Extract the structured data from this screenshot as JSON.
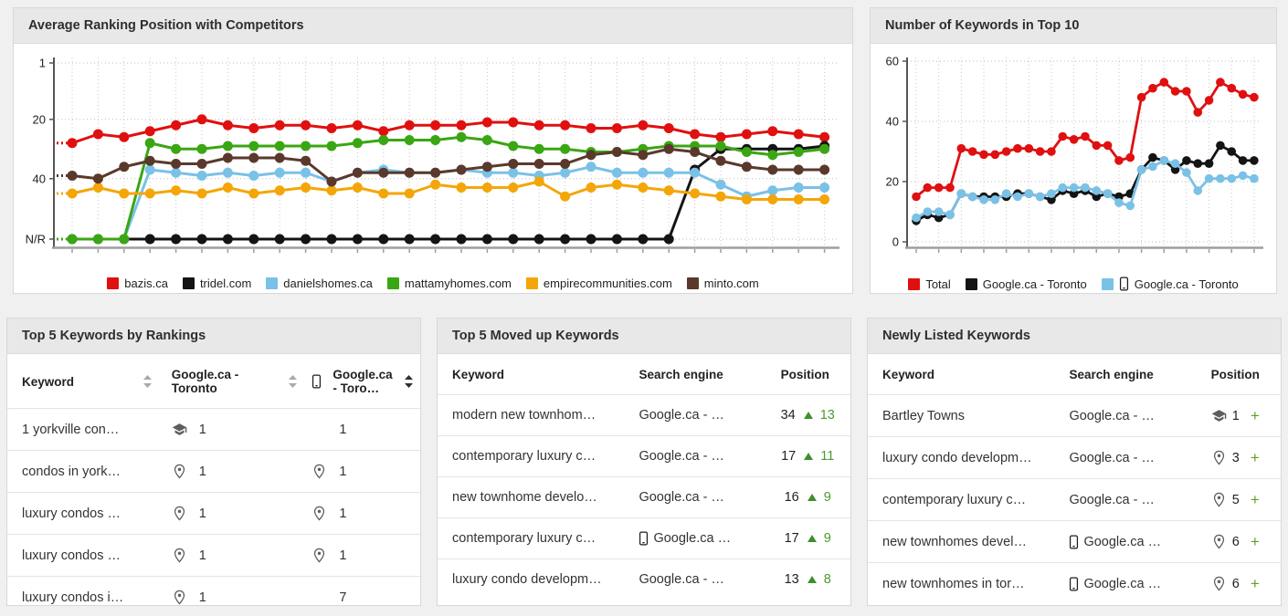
{
  "colors": {
    "red": "#e01010",
    "black": "#141414",
    "light_blue": "#7ac1e7",
    "green": "#3aa613",
    "orange": "#f4a609",
    "brown": "#5a392c",
    "change_green": "#4a9b28",
    "icon_grey": "#5d5d5d"
  },
  "chart_data": [
    {
      "type": "line",
      "title": "Average Ranking Position with Competitors",
      "x_count": 30,
      "y_ticks": [
        "1",
        "20",
        "40",
        "N/R"
      ],
      "y_inverted": true,
      "grid": true,
      "legend_position": "bottom",
      "series": [
        {
          "name": "bazis.ca",
          "color": "#e01010",
          "mobile": false,
          "values": [
            28,
            25,
            26,
            24,
            22,
            20,
            22,
            23,
            22,
            22,
            23,
            22,
            24,
            22,
            22,
            22,
            21,
            21,
            22,
            22,
            23,
            23,
            22,
            23,
            25,
            26,
            25,
            24,
            25,
            26
          ]
        },
        {
          "name": "tridel.com",
          "color": "#141414",
          "mobile": false,
          "values": [
            null,
            null,
            null,
            null,
            null,
            null,
            null,
            null,
            null,
            null,
            null,
            null,
            null,
            null,
            null,
            null,
            null,
            null,
            null,
            null,
            null,
            null,
            null,
            null,
            37,
            30,
            30,
            30,
            30,
            29
          ]
        },
        {
          "name": "danielshomes.ca",
          "color": "#7ac1e7",
          "mobile": false,
          "values": [
            null,
            null,
            null,
            37,
            38,
            39,
            38,
            39,
            38,
            38,
            41,
            38,
            37,
            38,
            38,
            37,
            38,
            38,
            39,
            38,
            36,
            38,
            38,
            38,
            38,
            42,
            46,
            44,
            43,
            43
          ]
        },
        {
          "name": "mattamyhomes.com",
          "color": "#3aa613",
          "mobile": false,
          "values": [
            null,
            null,
            null,
            28,
            30,
            30,
            29,
            29,
            29,
            29,
            29,
            28,
            27,
            27,
            27,
            26,
            27,
            29,
            30,
            30,
            31,
            31,
            30,
            29,
            29,
            29,
            31,
            32,
            31,
            30
          ]
        },
        {
          "name": "empirecommunities.com",
          "color": "#f4a609",
          "mobile": false,
          "values": [
            45,
            43,
            45,
            45,
            44,
            45,
            43,
            45,
            44,
            43,
            44,
            43,
            45,
            45,
            42,
            43,
            43,
            43,
            41,
            46,
            43,
            42,
            43,
            44,
            45,
            46,
            47,
            47,
            47,
            47
          ]
        },
        {
          "name": "minto.com",
          "color": "#5a392c",
          "mobile": false,
          "values": [
            39,
            40,
            36,
            34,
            35,
            35,
            33,
            33,
            33,
            34,
            41,
            38,
            38,
            38,
            38,
            37,
            36,
            35,
            35,
            35,
            32,
            31,
            32,
            30,
            31,
            34,
            36,
            37,
            37,
            37
          ]
        }
      ]
    },
    {
      "type": "line",
      "title": "Number of Keywords in Top 10",
      "x_count": 31,
      "y_ticks": [
        "0",
        "20",
        "40",
        "60"
      ],
      "y_inverted": false,
      "grid": true,
      "legend_position": "bottom",
      "series": [
        {
          "name": "Total",
          "color": "#e01010",
          "mobile": false,
          "values": [
            15,
            18,
            18,
            18,
            31,
            30,
            29,
            29,
            30,
            31,
            31,
            30,
            30,
            35,
            34,
            35,
            32,
            32,
            27,
            28,
            48,
            51,
            53,
            50,
            50,
            43,
            47,
            53,
            51,
            49,
            48
          ]
        },
        {
          "name": "Google.ca - Toronto",
          "color": "#141414",
          "mobile": false,
          "values": [
            7,
            9,
            8,
            9,
            16,
            15,
            15,
            15,
            15,
            16,
            16,
            15,
            14,
            17,
            16,
            17,
            15,
            16,
            15,
            16,
            24,
            28,
            27,
            24,
            27,
            26,
            26,
            32,
            30,
            27,
            27
          ]
        },
        {
          "name": "Google.ca - Toronto",
          "color": "#7ac1e7",
          "mobile": true,
          "values": [
            8,
            10,
            10,
            9,
            16,
            15,
            14,
            14,
            16,
            15,
            16,
            15,
            16,
            18,
            18,
            18,
            17,
            16,
            13,
            12,
            24,
            25,
            27,
            26,
            23,
            17,
            21,
            21,
            21,
            22,
            21
          ]
        }
      ]
    }
  ],
  "tables": {
    "by_rankings": {
      "title": "Top 5 Keywords by Rankings",
      "columns": [
        {
          "label": "Keyword",
          "sort": "inactive",
          "mobile": false
        },
        {
          "label": "Google.ca - Toronto",
          "sort": "inactive",
          "mobile": false
        },
        {
          "label": "Google.ca - Toro…",
          "sort": "active",
          "mobile": true
        }
      ],
      "rows": [
        {
          "keyword": "1 yorkville con…",
          "cells": [
            {
              "icon": "graduation-cap",
              "value": "1"
            },
            {
              "icon": "",
              "value": "1"
            }
          ]
        },
        {
          "keyword": "condos in york…",
          "cells": [
            {
              "icon": "location-pin",
              "value": "1"
            },
            {
              "icon": "location-pin",
              "value": "1"
            }
          ]
        },
        {
          "keyword": "luxury condos …",
          "cells": [
            {
              "icon": "location-pin",
              "value": "1"
            },
            {
              "icon": "location-pin",
              "value": "1"
            }
          ]
        },
        {
          "keyword": "luxury condos …",
          "cells": [
            {
              "icon": "location-pin",
              "value": "1"
            },
            {
              "icon": "location-pin",
              "value": "1"
            }
          ]
        },
        {
          "keyword": "luxury condos i…",
          "cells": [
            {
              "icon": "location-pin",
              "value": "1"
            },
            {
              "icon": "",
              "value": "7"
            }
          ]
        }
      ]
    },
    "moved_up": {
      "title": "Top 5 Moved up Keywords",
      "columns": [
        {
          "label": "Keyword"
        },
        {
          "label": "Search engine"
        },
        {
          "label": "Position"
        }
      ],
      "rows": [
        {
          "keyword": "modern new townhom…",
          "engine": "Google.ca - …",
          "mobile": false,
          "position": "34",
          "change": "13"
        },
        {
          "keyword": "contemporary luxury c…",
          "engine": "Google.ca - …",
          "mobile": false,
          "position": "17",
          "change": "11"
        },
        {
          "keyword": "new townhome develo…",
          "engine": "Google.ca - …",
          "mobile": false,
          "position": "16",
          "change": "9"
        },
        {
          "keyword": "contemporary luxury c…",
          "engine": "Google.ca …",
          "mobile": true,
          "position": "17",
          "change": "9"
        },
        {
          "keyword": "luxury condo developm…",
          "engine": "Google.ca - …",
          "mobile": false,
          "position": "13",
          "change": "8"
        }
      ]
    },
    "newly_listed": {
      "title": "Newly Listed Keywords",
      "columns": [
        {
          "label": "Keyword"
        },
        {
          "label": "Search engine"
        },
        {
          "label": "Position"
        }
      ],
      "rows": [
        {
          "keyword": "Bartley Towns",
          "engine": "Google.ca - …",
          "mobile": false,
          "icon": "graduation-cap",
          "position": "1",
          "plus": "+"
        },
        {
          "keyword": "luxury condo developm…",
          "engine": "Google.ca - …",
          "mobile": false,
          "icon": "location-pin",
          "position": "3",
          "plus": "+"
        },
        {
          "keyword": "contemporary luxury c…",
          "engine": "Google.ca - …",
          "mobile": false,
          "icon": "location-pin",
          "position": "5",
          "plus": "+"
        },
        {
          "keyword": "new townhomes devel…",
          "engine": "Google.ca …",
          "mobile": true,
          "icon": "location-pin",
          "position": "6",
          "plus": "+"
        },
        {
          "keyword": "new townhomes in tor…",
          "engine": "Google.ca …",
          "mobile": true,
          "icon": "location-pin",
          "position": "6",
          "plus": "+"
        }
      ]
    }
  }
}
